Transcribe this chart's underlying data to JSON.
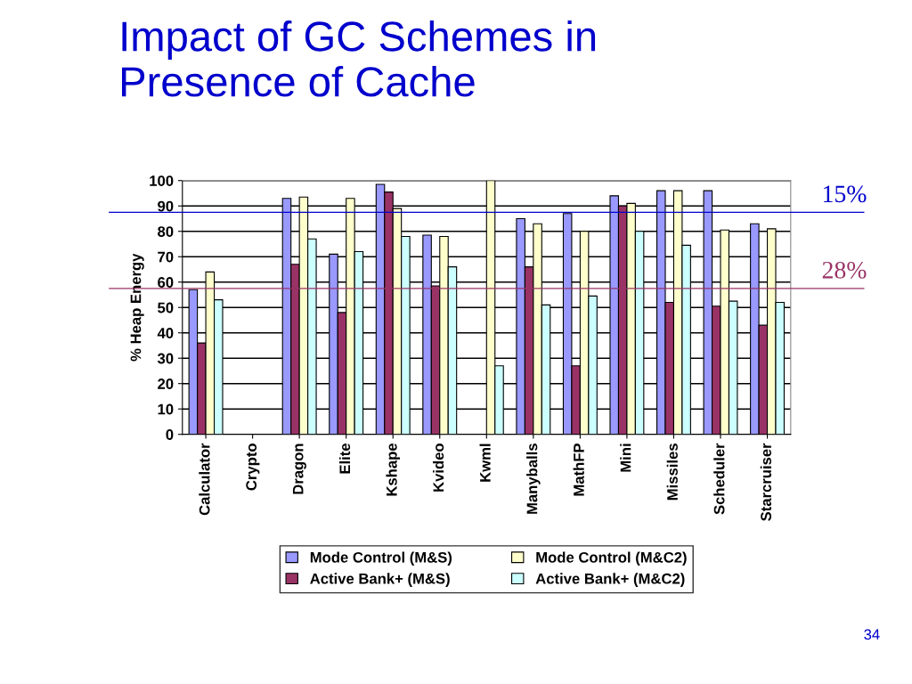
{
  "chart_data": {
    "type": "bar",
    "title": "Impact of GC Schemes in\nPresence of Cache",
    "ylabel": "% Heap Energy",
    "categories": [
      "Calculator",
      "Crypto",
      "Dragon",
      "Elite",
      "Kshape",
      "Kvideo",
      "Kwml",
      "Manyballs",
      "MathFP",
      "Mini",
      "Missiles",
      "Scheduler",
      "Starcruiser"
    ],
    "series": [
      {
        "name": "Mode Control (M&S)",
        "color": "#9999ff",
        "values": [
          57,
          null,
          93,
          71,
          98.5,
          78.5,
          null,
          85,
          87,
          94,
          96,
          96,
          83
        ]
      },
      {
        "name": "Active Bank+ (M&S)",
        "color": "#993366",
        "values": [
          36,
          null,
          67,
          48,
          95.5,
          58.5,
          null,
          66,
          27,
          90,
          52,
          50.5,
          43
        ]
      },
      {
        "name": "Mode Control (M&C2)",
        "color": "#ffffcc",
        "values": [
          64,
          null,
          93.5,
          93,
          89,
          78,
          100,
          83,
          80,
          91,
          96,
          80.5,
          81
        ]
      },
      {
        "name": "Active Bank+ (M&C2)",
        "color": "#ccffff",
        "values": [
          53,
          null,
          77,
          72,
          78,
          66,
          27,
          51,
          54.5,
          80,
          74.5,
          52.5,
          52
        ]
      }
    ],
    "ylim": [
      0,
      100
    ],
    "yticks": [
      0,
      10,
      20,
      30,
      40,
      50,
      60,
      70,
      80,
      90,
      100
    ],
    "grid": "y",
    "legend": "bottom",
    "ref_lines": [
      {
        "axis": "y",
        "value": 87.5,
        "color": "#0000cc"
      },
      {
        "axis": "y",
        "value": 57.5,
        "color": "#993366"
      }
    ],
    "annotations": [
      {
        "text": "15%",
        "y": 87.5
      },
      {
        "text": "28%",
        "y": 57.5
      },
      "34"
    ]
  }
}
